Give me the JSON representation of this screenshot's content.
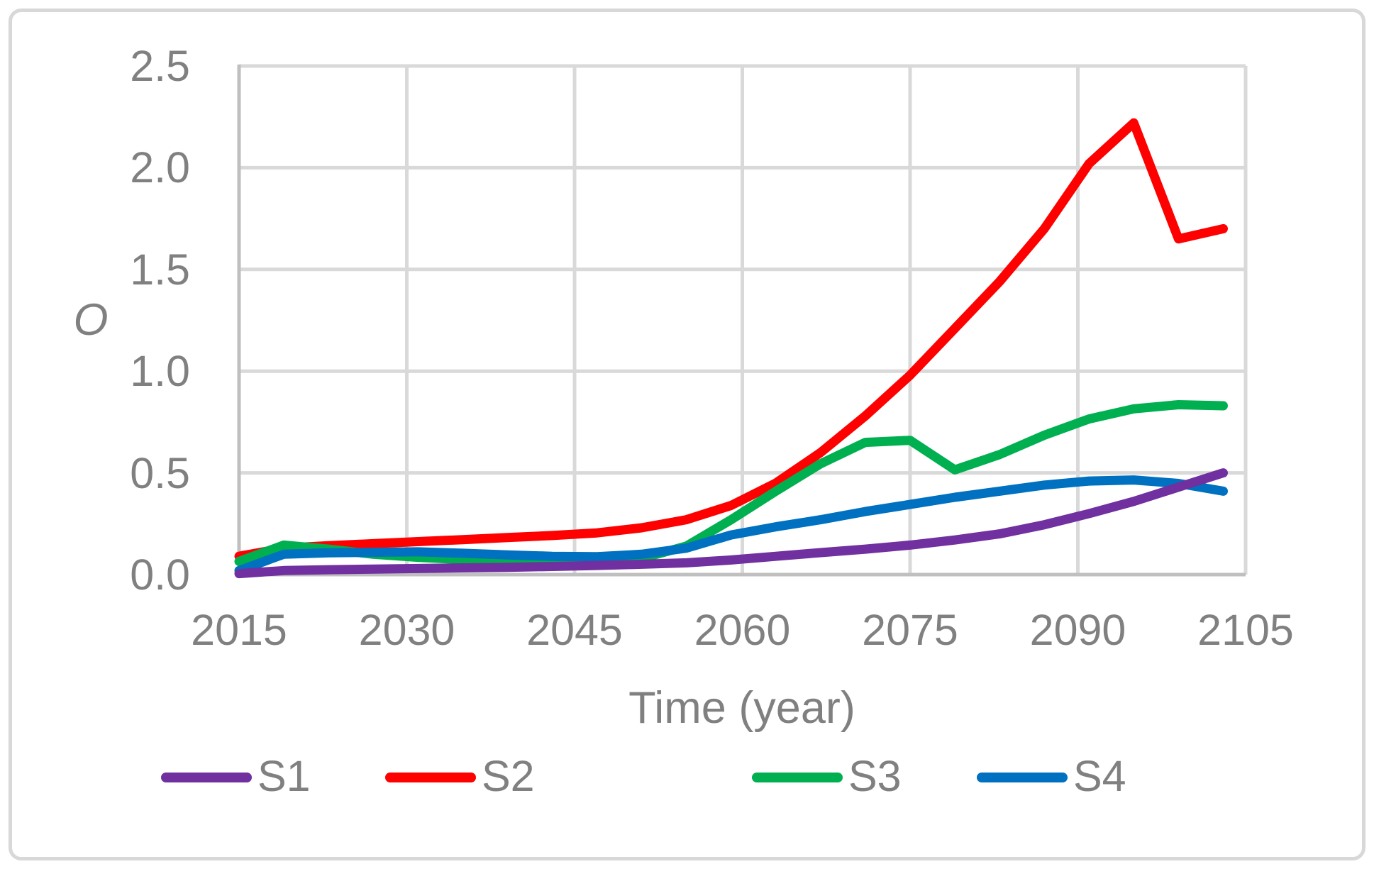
{
  "figure": {
    "background_color": "#ffffff",
    "border_color": "#d8d8d8"
  },
  "chart_data": {
    "type": "line",
    "title": "",
    "xlabel": "Time (year)",
    "ylabel": "O",
    "xlim": [
      2015,
      2105
    ],
    "ylim": [
      0,
      2.5
    ],
    "grid": true,
    "gridline_color": "#d9d9d9",
    "axis_line_color": "#bfbfbf",
    "tick_label_color": "#808080",
    "line_width": 13,
    "legend_position": "bottom",
    "x_ticks": [
      2015,
      2030,
      2045,
      2060,
      2075,
      2090,
      2105
    ],
    "x_tick_labels": [
      "2015",
      "2030",
      "2045",
      "2060",
      "2075",
      "2090",
      "2105"
    ],
    "y_ticks": [
      0.0,
      0.5,
      1.0,
      1.5,
      2.0,
      2.5
    ],
    "y_tick_labels": [
      "0.0",
      "0.5",
      "1.0",
      "1.5",
      "2.0",
      "2.5"
    ],
    "draw_order": [
      "S2",
      "S3",
      "S4",
      "S1"
    ],
    "series": [
      {
        "name": "S1",
        "color": "#7030a0",
        "x": [
          2015,
          2019,
          2023,
          2027,
          2031,
          2035,
          2039,
          2043,
          2047,
          2051,
          2055,
          2059,
          2063,
          2067,
          2071,
          2075,
          2079,
          2083,
          2087,
          2091,
          2095,
          2099,
          2103
        ],
        "y": [
          0.005,
          0.02,
          0.024,
          0.027,
          0.03,
          0.033,
          0.036,
          0.04,
          0.045,
          0.051,
          0.058,
          0.072,
          0.09,
          0.108,
          0.125,
          0.145,
          0.17,
          0.2,
          0.245,
          0.3,
          0.36,
          0.43,
          0.5
        ]
      },
      {
        "name": "S2",
        "color": "#ff0000",
        "x": [
          2015,
          2019,
          2023,
          2027,
          2031,
          2035,
          2039,
          2043,
          2047,
          2051,
          2055,
          2059,
          2063,
          2067,
          2071,
          2075,
          2079,
          2083,
          2087,
          2091,
          2095,
          2099,
          2103
        ],
        "y": [
          0.09,
          0.13,
          0.142,
          0.152,
          0.162,
          0.172,
          0.182,
          0.192,
          0.205,
          0.23,
          0.27,
          0.34,
          0.45,
          0.6,
          0.78,
          0.98,
          1.21,
          1.44,
          1.7,
          2.02,
          2.22,
          1.65,
          1.7
        ]
      },
      {
        "name": "S3",
        "color": "#00b050",
        "x": [
          2015,
          2019,
          2023,
          2027,
          2031,
          2035,
          2039,
          2043,
          2047,
          2051,
          2055,
          2059,
          2063,
          2067,
          2071,
          2075,
          2079,
          2083,
          2087,
          2091,
          2095,
          2099,
          2103
        ],
        "y": [
          0.065,
          0.145,
          0.125,
          0.1,
          0.085,
          0.074,
          0.066,
          0.062,
          0.065,
          0.08,
          0.14,
          0.27,
          0.41,
          0.545,
          0.65,
          0.66,
          0.515,
          0.59,
          0.685,
          0.765,
          0.815,
          0.835,
          0.83
        ]
      },
      {
        "name": "S4",
        "color": "#0070c0",
        "x": [
          2015,
          2019,
          2023,
          2027,
          2031,
          2035,
          2039,
          2043,
          2047,
          2051,
          2055,
          2059,
          2063,
          2067,
          2071,
          2075,
          2079,
          2083,
          2087,
          2091,
          2095,
          2099,
          2103
        ],
        "y": [
          0.02,
          0.1,
          0.107,
          0.11,
          0.112,
          0.105,
          0.097,
          0.09,
          0.088,
          0.1,
          0.13,
          0.195,
          0.235,
          0.27,
          0.31,
          0.345,
          0.38,
          0.41,
          0.44,
          0.46,
          0.465,
          0.448,
          0.41
        ]
      }
    ]
  }
}
